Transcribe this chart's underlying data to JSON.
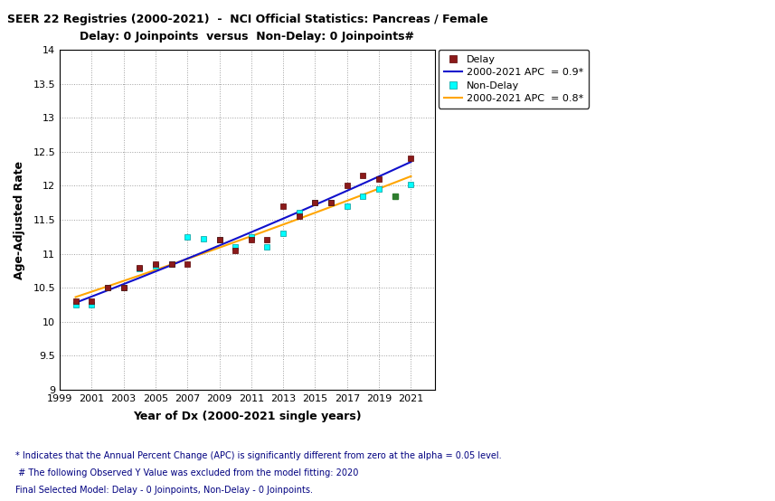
{
  "title_line1": "SEER 22 Registries (2000-2021)  -  NCI Official Statistics: Pancreas / Female",
  "title_line2": "Delay: 0 Joinpoints  versus  Non-Delay: 0 Joinpoints#",
  "xlabel": "Year of Dx (2000-2021 single years)",
  "ylabel": "Age-Adjusted Rate",
  "xlim": [
    1999,
    2022.5
  ],
  "ylim": [
    9,
    14
  ],
  "xticks": [
    1999,
    2001,
    2003,
    2005,
    2007,
    2009,
    2011,
    2013,
    2015,
    2017,
    2019,
    2021
  ],
  "yticks": [
    9,
    9.5,
    10,
    10.5,
    11,
    11.5,
    12,
    12.5,
    13,
    13.5,
    14
  ],
  "delay_years": [
    2000,
    2001,
    2002,
    2003,
    2004,
    2005,
    2006,
    2007,
    2009,
    2010,
    2011,
    2012,
    2013,
    2014,
    2015,
    2016,
    2017,
    2018,
    2019,
    2021
  ],
  "delay_values": [
    10.3,
    10.3,
    10.5,
    10.5,
    10.8,
    10.85,
    10.85,
    10.85,
    11.2,
    11.05,
    11.2,
    11.2,
    11.7,
    11.55,
    11.75,
    11.75,
    12.0,
    12.15,
    12.1,
    12.4
  ],
  "nodelay_years": [
    2000,
    2001,
    2002,
    2003,
    2004,
    2005,
    2006,
    2007,
    2008,
    2009,
    2010,
    2011,
    2012,
    2013,
    2014,
    2015,
    2016,
    2017,
    2018,
    2019,
    2020,
    2021
  ],
  "nodelay_values": [
    10.25,
    10.25,
    10.5,
    10.5,
    10.78,
    10.82,
    10.85,
    11.25,
    11.22,
    11.2,
    11.1,
    11.25,
    11.1,
    11.3,
    11.6,
    11.75,
    11.75,
    11.7,
    11.85,
    11.95,
    11.85,
    12.02
  ],
  "nodelay_excluded_years": [
    2020
  ],
  "nodelay_excluded_values": [
    11.85
  ],
  "delay_line_color": "#1010CC",
  "nodelay_line_color": "#FFA500",
  "delay_dot_color": "#8B1A1A",
  "nodelay_dot_color": "#00FFFF",
  "nodelay_excl_color": "#2E7D2E",
  "background_color": "#FFFFFF",
  "footnote1": "* Indicates that the Annual Percent Change (APC) is significantly different from zero at the alpha = 0.05 level.",
  "footnote2": " # The following Observed Y Value was excluded from the model fitting: 2020",
  "footnote3": "Final Selected Model: Delay - 0 Joinpoints, Non-Delay - 0 Joinpoints.",
  "legend_delay_dot": "Delay",
  "legend_delay_line": "2000-2021 APC  = 0.9*",
  "legend_nodelay_dot": "Non-Delay",
  "legend_nodelay_line": "2000-2021 APC  = 0.8*"
}
